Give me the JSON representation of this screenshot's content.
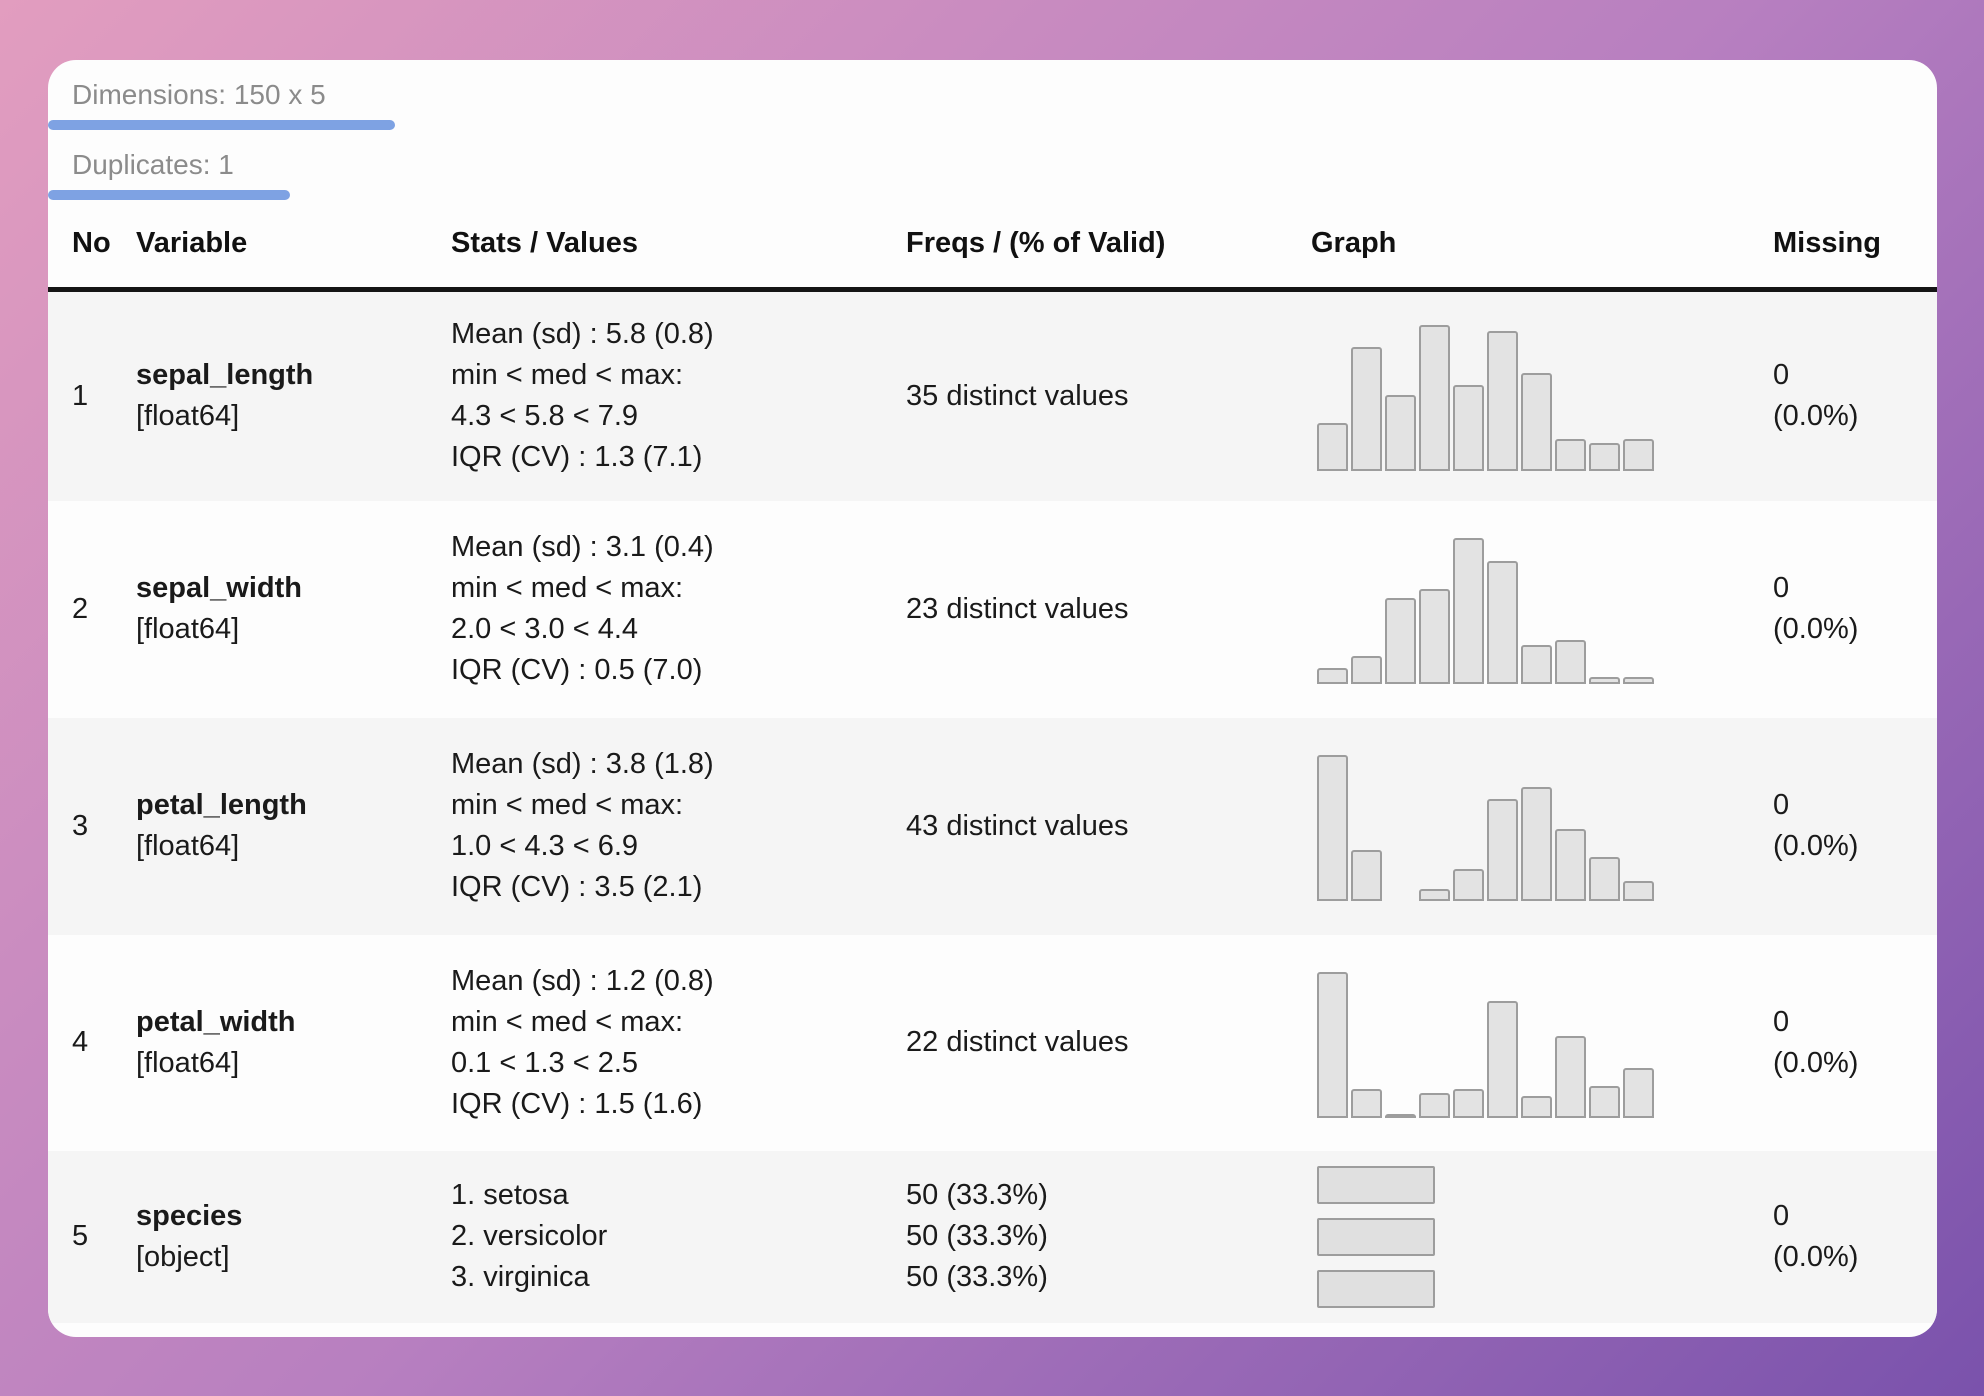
{
  "summary": {
    "dimensions": "Dimensions: 150 x 5",
    "duplicates": "Duplicates: 1"
  },
  "table": {
    "headers": [
      "No",
      "Variable",
      "Stats / Values",
      "Freqs / (% of Valid)",
      "Graph",
      "Missing"
    ],
    "rows": [
      {
        "no": "1",
        "variable": "sepal_length",
        "dtype": "[float64]",
        "stats": [
          "Mean (sd) : 5.8 (0.8)",
          "min < med < max:",
          "4.3 < 5.8 < 7.9",
          "IQR (CV) : 1.3 (7.1)"
        ],
        "freqs": [
          "35 distinct values"
        ],
        "missing": [
          "0",
          "(0.0%)"
        ]
      },
      {
        "no": "2",
        "variable": "sepal_width",
        "dtype": "[float64]",
        "stats": [
          "Mean (sd) : 3.1 (0.4)",
          "min < med < max:",
          "2.0 < 3.0 < 4.4",
          "IQR (CV) : 0.5 (7.0)"
        ],
        "freqs": [
          "23 distinct values"
        ],
        "missing": [
          "0",
          "(0.0%)"
        ]
      },
      {
        "no": "3",
        "variable": "petal_length",
        "dtype": "[float64]",
        "stats": [
          "Mean (sd) : 3.8 (1.8)",
          "min < med < max:",
          "1.0 < 4.3 < 6.9",
          "IQR (CV) : 3.5 (2.1)"
        ],
        "freqs": [
          "43 distinct values"
        ],
        "missing": [
          "0",
          "(0.0%)"
        ]
      },
      {
        "no": "4",
        "variable": "petal_width",
        "dtype": "[float64]",
        "stats": [
          "Mean (sd) : 1.2 (0.8)",
          "min < med < max:",
          "0.1 < 1.3 < 2.5",
          "IQR (CV) : 1.5 (1.6)"
        ],
        "freqs": [
          "22 distinct values"
        ],
        "missing": [
          "0",
          "(0.0%)"
        ]
      },
      {
        "no": "5",
        "variable": "species",
        "dtype": "[object]",
        "stats": [
          "1. setosa",
          "2. versicolor",
          "3. virginica"
        ],
        "freqs": [
          "50 (33.3%)",
          "50 (33.3%)",
          "50 (33.3%)"
        ],
        "missing": [
          "0",
          "(0.0%)"
        ]
      }
    ]
  },
  "chart_data": [
    {
      "row": 1,
      "variable": "sepal_length",
      "type": "histogram",
      "bins": 10,
      "x_range": [
        4.3,
        7.9
      ],
      "relative_heights": [
        33,
        85,
        52,
        100,
        59,
        96,
        67,
        22,
        19,
        22
      ]
    },
    {
      "row": 2,
      "variable": "sepal_width",
      "type": "histogram",
      "bins": 10,
      "x_range": [
        2.0,
        4.4
      ],
      "relative_heights": [
        11,
        19,
        59,
        65,
        100,
        84,
        27,
        30,
        5,
        5
      ]
    },
    {
      "row": 3,
      "variable": "petal_length",
      "type": "histogram",
      "bins": 10,
      "x_range": [
        1.0,
        6.9
      ],
      "relative_heights": [
        100,
        35,
        0,
        8,
        22,
        70,
        78,
        49,
        30,
        14
      ]
    },
    {
      "row": 4,
      "variable": "petal_width",
      "type": "histogram",
      "bins": 10,
      "x_range": [
        0.1,
        2.5
      ],
      "relative_heights": [
        100,
        20,
        2,
        17,
        20,
        80,
        15,
        56,
        22,
        34
      ]
    },
    {
      "row": 5,
      "variable": "species",
      "type": "bar",
      "orientation": "horizontal",
      "categories": [
        "setosa",
        "versicolor",
        "virginica"
      ],
      "counts": [
        50,
        50,
        50
      ],
      "percents": [
        33.3,
        33.3,
        33.3
      ],
      "relative_widths": [
        100,
        100,
        100
      ]
    }
  ],
  "colors": {
    "accent_underline": "#7ea2e3",
    "row_stripe": "#f5f5f5",
    "bar_fill": "#e3e3e3",
    "bar_border": "#9d9d9d",
    "gradient_start": "#e29dbf",
    "gradient_end": "#7a52ac",
    "muted_text": "#8b8b8b"
  }
}
